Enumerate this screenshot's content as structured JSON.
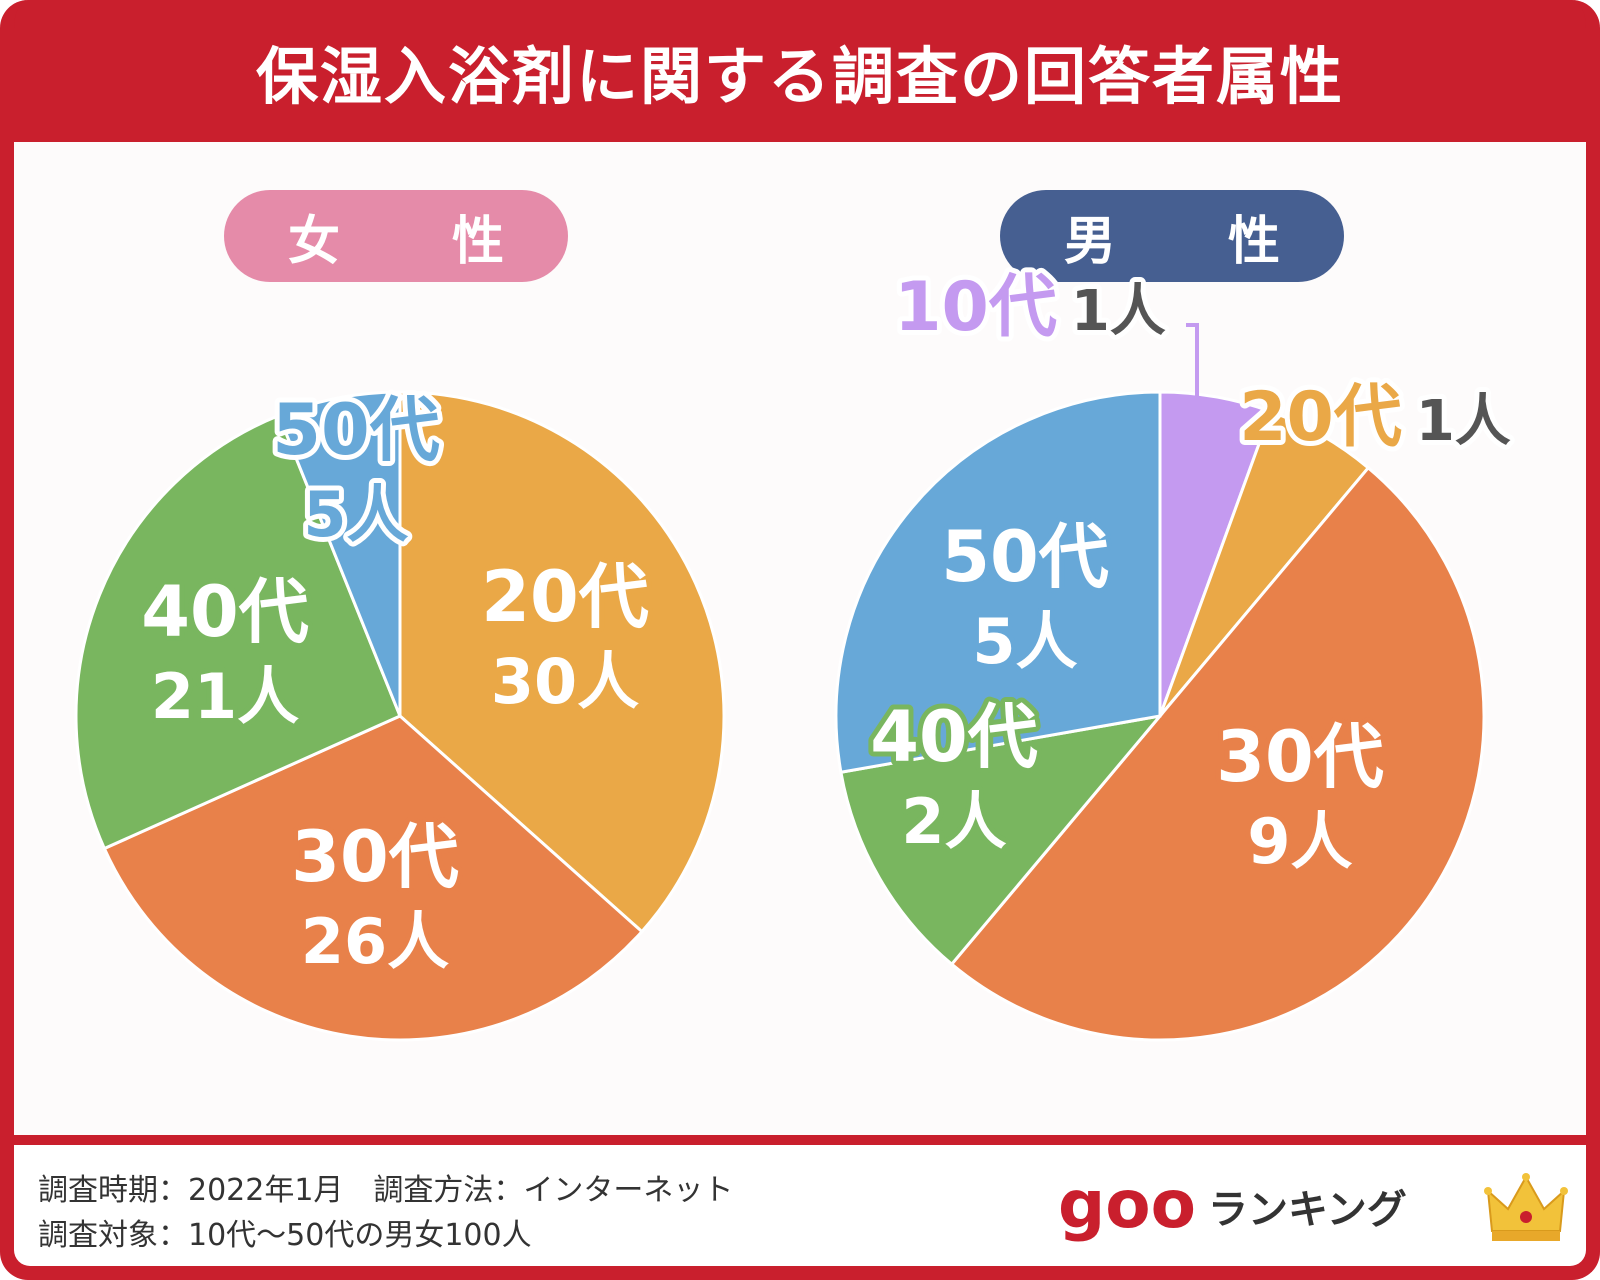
{
  "title": "保湿入浴剤に関する調査の回答者属性",
  "colors": {
    "frame": "#c91f2d",
    "female_pill": "#e58ba9",
    "male_pill": "#465f91",
    "age10": "#c49af0",
    "age20": "#eaa847",
    "age30": "#e8814a",
    "age40": "#79b65f",
    "age50": "#67a8d8"
  },
  "footer": {
    "line1": "調査時期：2022年1月　調査方法：インターネット",
    "line2": "調査対象：10代〜50代の男女100人",
    "logo_goo": "goo",
    "logo_ranking": "ランキング",
    "logo_icon": "crown-icon"
  },
  "chart_data": [
    {
      "type": "pie",
      "title": "女　性",
      "start_angle_deg": 0,
      "direction": "clockwise",
      "slices": [
        {
          "age": "20代",
          "count": "30人",
          "value": 30,
          "color": "#eaa847"
        },
        {
          "age": "30代",
          "count": "26人",
          "value": 26,
          "color": "#e8814a"
        },
        {
          "age": "40代",
          "count": "21人",
          "value": 21,
          "color": "#79b65f"
        },
        {
          "age": "50代",
          "count": "5人",
          "value": 5,
          "color": "#67a8d8"
        }
      ]
    },
    {
      "type": "pie",
      "title": "男　性",
      "start_angle_deg": 0,
      "direction": "clockwise",
      "slices": [
        {
          "age": "10代",
          "count": "1人",
          "value": 1,
          "color": "#c49af0"
        },
        {
          "age": "20代",
          "count": "1人",
          "value": 1,
          "color": "#eaa847"
        },
        {
          "age": "30代",
          "count": "9人",
          "value": 9,
          "color": "#e8814a"
        },
        {
          "age": "40代",
          "count": "2人",
          "value": 2,
          "color": "#79b65f"
        },
        {
          "age": "50代",
          "count": "5人",
          "value": 5,
          "color": "#67a8d8"
        }
      ]
    }
  ]
}
